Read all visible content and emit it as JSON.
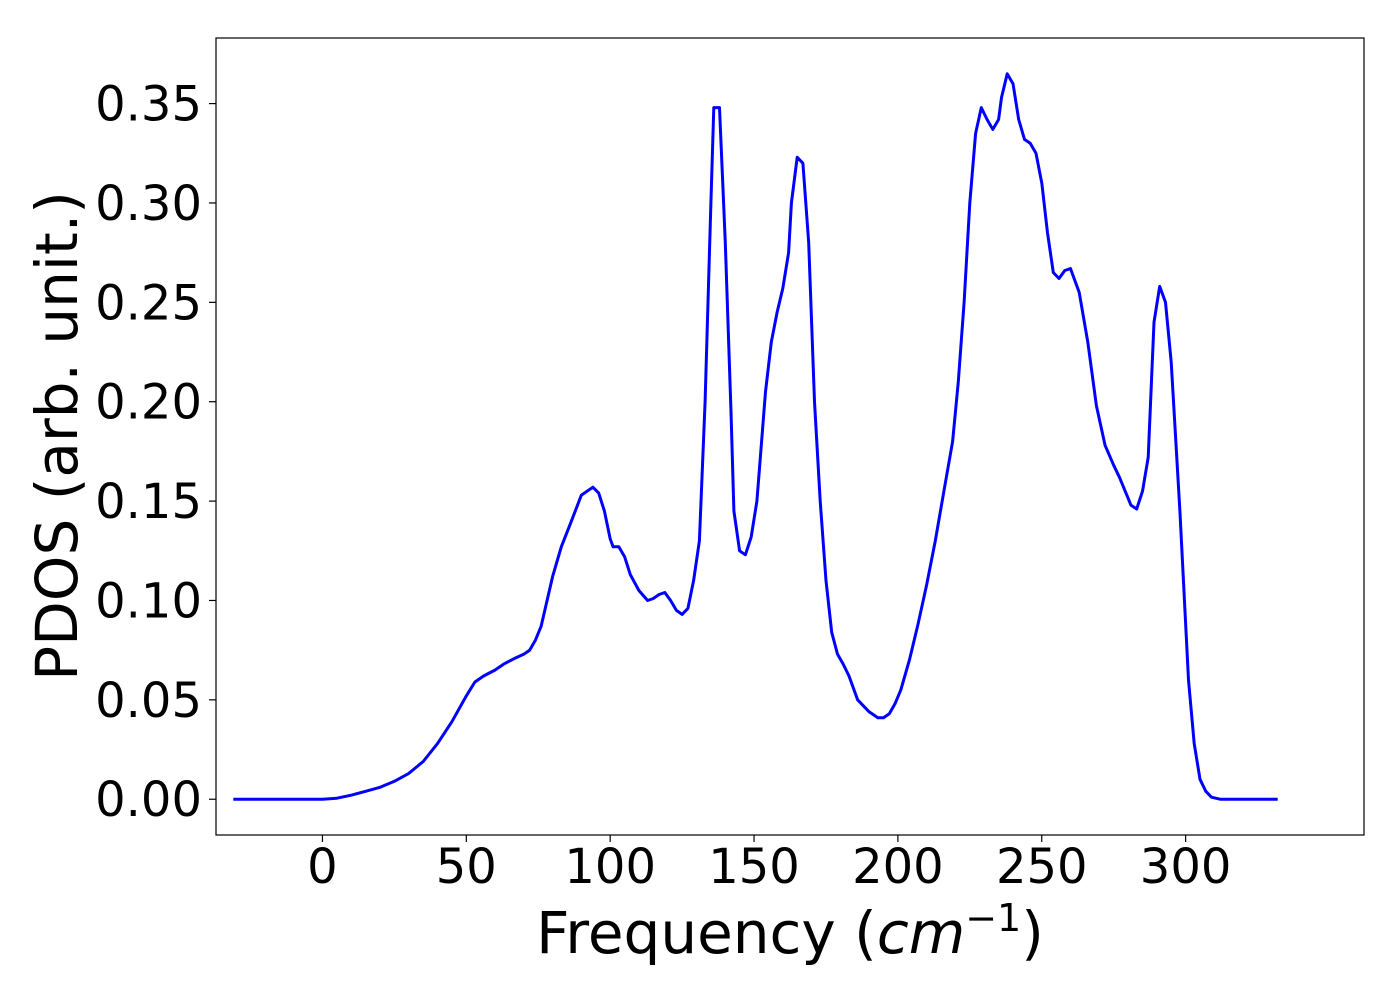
{
  "chart_data": {
    "type": "line",
    "title": "",
    "xlabel": "Frequency",
    "xlabel_unit_base": "cm",
    "xlabel_unit_exp": "−1",
    "ylabel": "PDOS (arb. unit.)",
    "xlim": [
      -37,
      362
    ],
    "ylim": [
      -0.018,
      0.383
    ],
    "xticks": [
      0,
      50,
      100,
      150,
      200,
      250,
      300
    ],
    "xtick_labels": [
      "0",
      "50",
      "100",
      "150",
      "200",
      "250",
      "300"
    ],
    "yticks": [
      0.0,
      0.05,
      0.1,
      0.15,
      0.2,
      0.25,
      0.3,
      0.35
    ],
    "ytick_labels": [
      "0.00",
      "0.05",
      "0.10",
      "0.15",
      "0.20",
      "0.25",
      "0.30",
      "0.35"
    ],
    "grid": false,
    "legend": false,
    "line_color": "#0000ff",
    "series": [
      {
        "x": [
          -31,
          -20,
          -10,
          0,
          5,
          10,
          15,
          20,
          25,
          30,
          35,
          40,
          45,
          50,
          53,
          56,
          60,
          63,
          67,
          70,
          72,
          74,
          76,
          80,
          83,
          86,
          90,
          94,
          96,
          98,
          100,
          101,
          103,
          105,
          107,
          110,
          113,
          115,
          117,
          119,
          121,
          123,
          125,
          127,
          129,
          131,
          133,
          135,
          136,
          138,
          140,
          142,
          143,
          145,
          147,
          149,
          151,
          154,
          156,
          158,
          160,
          162,
          163,
          165,
          167,
          169,
          171,
          173,
          175,
          177,
          179,
          181,
          183,
          186,
          190,
          193,
          195,
          197,
          199,
          201,
          204,
          207,
          210,
          213,
          216,
          219,
          221,
          223,
          225,
          227,
          229,
          231,
          233,
          235,
          236,
          238,
          240,
          242,
          244,
          246,
          248,
          250,
          252,
          254,
          256,
          258,
          260,
          263,
          266,
          269,
          272,
          275,
          277,
          279,
          281,
          283,
          285,
          287,
          289,
          291,
          293,
          295,
          298,
          301,
          303,
          305,
          307,
          309,
          312,
          320,
          332
        ],
        "y": [
          0,
          0,
          0,
          0,
          0.0005,
          0.002,
          0.004,
          0.006,
          0.009,
          0.013,
          0.019,
          0.028,
          0.039,
          0.052,
          0.059,
          0.062,
          0.065,
          0.068,
          0.071,
          0.073,
          0.075,
          0.08,
          0.087,
          0.112,
          0.127,
          0.138,
          0.153,
          0.157,
          0.154,
          0.145,
          0.131,
          0.127,
          0.127,
          0.122,
          0.113,
          0.105,
          0.1,
          0.101,
          0.103,
          0.104,
          0.1,
          0.095,
          0.093,
          0.096,
          0.11,
          0.13,
          0.2,
          0.3,
          0.348,
          0.348,
          0.28,
          0.195,
          0.145,
          0.125,
          0.123,
          0.132,
          0.15,
          0.205,
          0.23,
          0.245,
          0.257,
          0.275,
          0.3,
          0.323,
          0.32,
          0.28,
          0.2,
          0.15,
          0.11,
          0.084,
          0.073,
          0.068,
          0.062,
          0.05,
          0.044,
          0.041,
          0.041,
          0.043,
          0.048,
          0.055,
          0.07,
          0.088,
          0.108,
          0.13,
          0.155,
          0.18,
          0.21,
          0.25,
          0.3,
          0.335,
          0.348,
          0.342,
          0.337,
          0.342,
          0.353,
          0.365,
          0.36,
          0.342,
          0.332,
          0.33,
          0.325,
          0.31,
          0.285,
          0.265,
          0.262,
          0.266,
          0.267,
          0.255,
          0.23,
          0.198,
          0.178,
          0.168,
          0.162,
          0.155,
          0.148,
          0.146,
          0.155,
          0.172,
          0.24,
          0.258,
          0.25,
          0.22,
          0.145,
          0.06,
          0.028,
          0.01,
          0.004,
          0.001,
          0,
          0,
          0
        ]
      }
    ]
  }
}
